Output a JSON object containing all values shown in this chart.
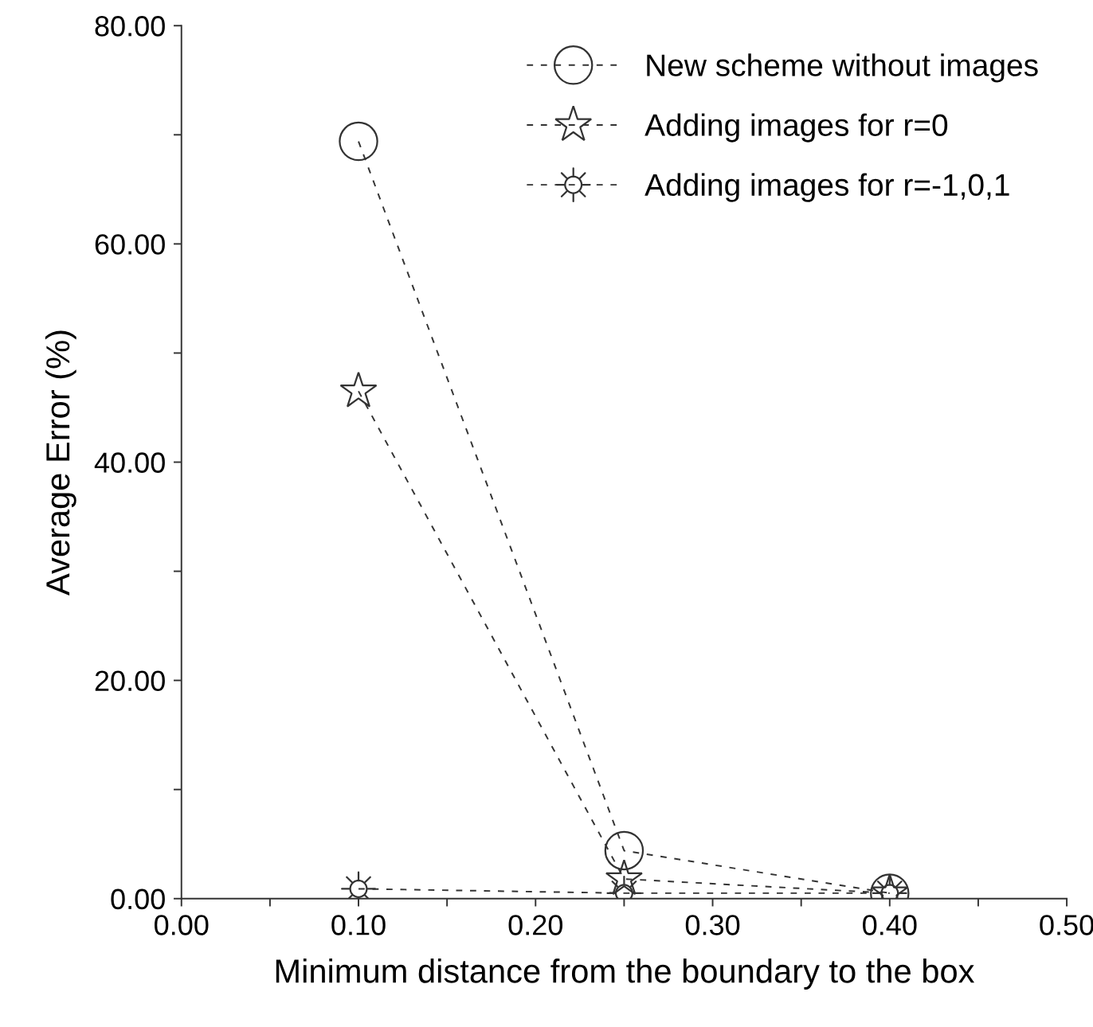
{
  "chart_data": {
    "type": "line",
    "xlabel": "Minimum distance from the boundary to the box",
    "ylabel": "Average Error (%)",
    "x": [
      0.1,
      0.25,
      0.4
    ],
    "series": [
      {
        "name": "New scheme without images",
        "color": "#333333",
        "marker": "circle",
        "values": [
          69.4,
          4.4,
          0.5
        ]
      },
      {
        "name": "Adding images for r=0",
        "color": "#333333",
        "marker": "star",
        "values": [
          46.5,
          1.8,
          0.5
        ]
      },
      {
        "name": "Adding images for r=-1,0,1",
        "color": "#333333",
        "marker": "cross",
        "values": [
          0.9,
          0.5,
          0.5
        ]
      }
    ],
    "line_style": "dashed",
    "legend": "top right",
    "grid": false,
    "xlim": [
      0,
      0.5
    ],
    "ylim": [
      0,
      80
    ],
    "xticks": [
      {
        "value": 0,
        "label": "0.00"
      },
      {
        "value": 0.05,
        "label": null
      },
      {
        "value": 0.1,
        "label": "0.10"
      },
      {
        "value": 0.15,
        "label": null
      },
      {
        "value": 0.2,
        "label": "0.20"
      },
      {
        "value": 0.25,
        "label": null
      },
      {
        "value": 0.3,
        "label": "0.30"
      },
      {
        "value": 0.35,
        "label": null
      },
      {
        "value": 0.4,
        "label": "0.40"
      },
      {
        "value": 0.45,
        "label": null
      },
      {
        "value": 0.5,
        "label": "0.50"
      }
    ],
    "yticks": [
      {
        "value": 0,
        "label": "0.00"
      },
      {
        "value": 10,
        "label": null
      },
      {
        "value": 20,
        "label": "20.00"
      },
      {
        "value": 30,
        "label": null
      },
      {
        "value": 40,
        "label": "40.00"
      },
      {
        "value": 50,
        "label": null
      },
      {
        "value": 60,
        "label": "60.00"
      },
      {
        "value": 70,
        "label": null
      },
      {
        "value": 80,
        "label": "80.00"
      }
    ]
  }
}
